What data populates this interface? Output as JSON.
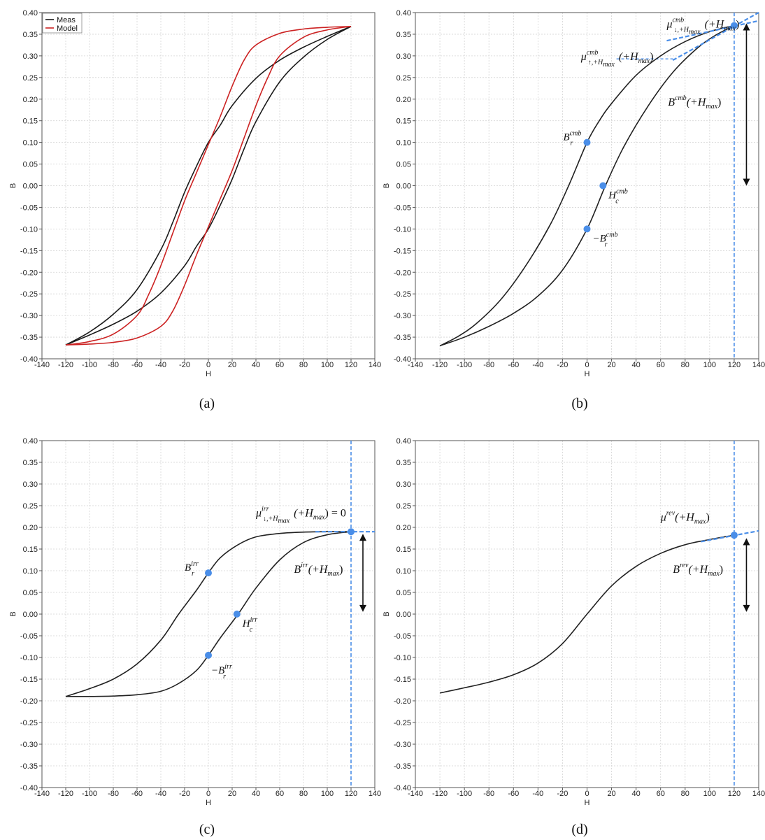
{
  "chart_data": [
    {
      "id": "a",
      "type": "line",
      "caption": "(a)",
      "xlabel": "H",
      "ylabel": "B",
      "xlim": [
        -140,
        140
      ],
      "ylim": [
        -0.4,
        0.4
      ],
      "x_ticks": [
        "-140",
        "-120",
        "-100",
        "-80",
        "-60",
        "-40",
        "-20",
        "0",
        "20",
        "40",
        "60",
        "80",
        "100",
        "120",
        "140"
      ],
      "y_ticks": [
        "-0.40",
        "-0.35",
        "-0.30",
        "-0.25",
        "-0.20",
        "-0.15",
        "-0.10",
        "-0.05",
        "0.00",
        "0.05",
        "0.10",
        "0.15",
        "0.20",
        "0.25",
        "0.30",
        "0.35",
        "0.40"
      ],
      "grid": true,
      "legend": {
        "placement": "top-left",
        "entries": [
          "Meas",
          "Model"
        ]
      },
      "series": [
        {
          "name": "Meas",
          "color": "#1a1a1a",
          "branches": [
            [
              [
                -120,
                -0.368
              ],
              [
                -100,
                -0.345
              ],
              [
                -80,
                -0.32
              ],
              [
                -60,
                -0.29
              ],
              [
                -40,
                -0.248
              ],
              [
                -20,
                -0.185
              ],
              [
                -10,
                -0.14
              ],
              [
                0,
                -0.1
              ],
              [
                10,
                -0.045
              ],
              [
                20,
                0.015
              ],
              [
                30,
                0.085
              ],
              [
                40,
                0.148
              ],
              [
                60,
                0.24
              ],
              [
                80,
                0.297
              ],
              [
                100,
                0.338
              ],
              [
                120,
                0.368
              ]
            ],
            [
              [
                120,
                0.368
              ],
              [
                100,
                0.345
              ],
              [
                80,
                0.32
              ],
              [
                60,
                0.29
              ],
              [
                40,
                0.248
              ],
              [
                20,
                0.185
              ],
              [
                10,
                0.14
              ],
              [
                0,
                0.1
              ],
              [
                -10,
                0.045
              ],
              [
                -20,
                -0.015
              ],
              [
                -30,
                -0.085
              ],
              [
                -40,
                -0.148
              ],
              [
                -60,
                -0.24
              ],
              [
                -80,
                -0.297
              ],
              [
                -100,
                -0.338
              ],
              [
                -120,
                -0.368
              ]
            ]
          ]
        },
        {
          "name": "Model",
          "color": "#cc2222",
          "branches": [
            [
              [
                -120,
                -0.368
              ],
              [
                -100,
                -0.366
              ],
              [
                -80,
                -0.362
              ],
              [
                -60,
                -0.352
              ],
              [
                -40,
                -0.325
              ],
              [
                -30,
                -0.29
              ],
              [
                -20,
                -0.23
              ],
              [
                -10,
                -0.16
              ],
              [
                0,
                -0.095
              ],
              [
                10,
                -0.03
              ],
              [
                20,
                0.035
              ],
              [
                30,
                0.11
              ],
              [
                40,
                0.185
              ],
              [
                50,
                0.25
              ],
              [
                60,
                0.3
              ],
              [
                80,
                0.343
              ],
              [
                100,
                0.36
              ],
              [
                120,
                0.368
              ]
            ],
            [
              [
                120,
                0.368
              ],
              [
                100,
                0.366
              ],
              [
                80,
                0.362
              ],
              [
                60,
                0.352
              ],
              [
                40,
                0.325
              ],
              [
                30,
                0.29
              ],
              [
                20,
                0.23
              ],
              [
                10,
                0.16
              ],
              [
                0,
                0.095
              ],
              [
                -10,
                0.03
              ],
              [
                -20,
                -0.035
              ],
              [
                -30,
                -0.11
              ],
              [
                -40,
                -0.185
              ],
              [
                -50,
                -0.25
              ],
              [
                -60,
                -0.3
              ],
              [
                -80,
                -0.343
              ],
              [
                -100,
                -0.36
              ],
              [
                -120,
                -0.368
              ]
            ]
          ]
        }
      ],
      "points": [],
      "annotations": []
    },
    {
      "id": "b",
      "type": "line",
      "caption": "(b)",
      "xlabel": "H",
      "ylabel": "B",
      "xlim": [
        -140,
        140
      ],
      "ylim": [
        -0.4,
        0.4
      ],
      "x_ticks": [
        "-140",
        "-120",
        "-100",
        "-80",
        "-60",
        "-40",
        "-20",
        "0",
        "20",
        "40",
        "60",
        "80",
        "100",
        "120",
        "140"
      ],
      "y_ticks": [
        "-0.40",
        "-0.35",
        "-0.30",
        "-0.25",
        "-0.20",
        "-0.15",
        "-0.10",
        "-0.05",
        "0.00",
        "0.05",
        "0.10",
        "0.15",
        "0.20",
        "0.25",
        "0.30",
        "0.35",
        "0.40"
      ],
      "grid": true,
      "accent_color": "#4a8ee8",
      "series": [
        {
          "color": "#222222",
          "branches": [
            [
              [
                -120,
                -0.37
              ],
              [
                -100,
                -0.35
              ],
              [
                -80,
                -0.325
              ],
              [
                -60,
                -0.295
              ],
              [
                -40,
                -0.255
              ],
              [
                -20,
                -0.195
              ],
              [
                0,
                -0.1
              ],
              [
                15,
                0.0
              ],
              [
                30,
                0.09
              ],
              [
                50,
                0.185
              ],
              [
                70,
                0.262
              ],
              [
                90,
                0.318
              ],
              [
                105,
                0.348
              ],
              [
                120,
                0.37
              ]
            ],
            [
              [
                120,
                0.37
              ],
              [
                100,
                0.356
              ],
              [
                80,
                0.333
              ],
              [
                60,
                0.3
              ],
              [
                40,
                0.255
              ],
              [
                20,
                0.19
              ],
              [
                10,
                0.15
              ],
              [
                0,
                0.1
              ],
              [
                -15,
                0.0
              ],
              [
                -30,
                -0.09
              ],
              [
                -50,
                -0.185
              ],
              [
                -70,
                -0.262
              ],
              [
                -90,
                -0.318
              ],
              [
                -105,
                -0.348
              ],
              [
                -120,
                -0.37
              ]
            ]
          ]
        }
      ],
      "points": [
        {
          "x": 0,
          "y": 0.1,
          "label": {
            "base": "B",
            "sub": "r",
            "sup": "cmb",
            "side": "left"
          }
        },
        {
          "x": 13,
          "y": 0.0,
          "label": {
            "base": "H",
            "sub": "c",
            "sup": "cmb",
            "side": "right-below"
          }
        },
        {
          "x": 0,
          "y": -0.1,
          "label": {
            "base": "−B",
            "sub": "r",
            "sup": "cmb",
            "side": "right-below"
          }
        },
        {
          "x": 120,
          "y": 0.37,
          "label": null
        }
      ],
      "vline_x": 120,
      "tangents": [
        {
          "from": [
            65,
            0.335
          ],
          "to": [
            140,
            0.381
          ]
        },
        {
          "from": [
            70,
            0.29
          ],
          "to": [
            140,
            0.4
          ]
        }
      ],
      "hguide": {
        "x1": 24,
        "x2": 72,
        "y": 0.293
      },
      "arrow": {
        "x": 130,
        "y1": 0.375,
        "y2": 0.0
      },
      "annotations": [
        {
          "kind": "mu",
          "sup": "cmb",
          "arrow_sym": "↓",
          "tail": "(+H",
          "sub": "max",
          "close": ")",
          "x": 65,
          "y": 0.365
        },
        {
          "kind": "mu",
          "sup": "cmb",
          "arrow_sym": "↑",
          "tail": "(+H",
          "sub": "max",
          "close": ")",
          "x": -5,
          "y": 0.29
        },
        {
          "kind": "big",
          "base": "B",
          "sup": "cmb",
          "tail": "(+H",
          "sub": "max",
          "close": ")",
          "x": 66,
          "y": 0.185
        }
      ]
    },
    {
      "id": "c",
      "type": "line",
      "caption": "(c)",
      "xlabel": "H",
      "ylabel": "B",
      "xlim": [
        -140,
        140
      ],
      "ylim": [
        -0.4,
        0.4
      ],
      "x_ticks": [
        "-140",
        "-120",
        "-100",
        "-80",
        "-60",
        "-40",
        "-20",
        "0",
        "20",
        "40",
        "60",
        "80",
        "100",
        "120",
        "140"
      ],
      "y_ticks": [
        "-0.40",
        "-0.35",
        "-0.30",
        "-0.25",
        "-0.20",
        "-0.15",
        "-0.10",
        "-0.05",
        "0.00",
        "0.05",
        "0.10",
        "0.15",
        "0.20",
        "0.25",
        "0.30",
        "0.35",
        "0.40"
      ],
      "grid": true,
      "accent_color": "#4a8ee8",
      "series": [
        {
          "color": "#222222",
          "branches": [
            [
              [
                -120,
                -0.19
              ],
              [
                -100,
                -0.19
              ],
              [
                -80,
                -0.189
              ],
              [
                -60,
                -0.186
              ],
              [
                -40,
                -0.178
              ],
              [
                -25,
                -0.16
              ],
              [
                -10,
                -0.13
              ],
              [
                0,
                -0.095
              ],
              [
                10,
                -0.055
              ],
              [
                25,
                0.0
              ],
              [
                40,
                0.06
              ],
              [
                60,
                0.125
              ],
              [
                80,
                0.165
              ],
              [
                100,
                0.183
              ],
              [
                120,
                0.19
              ]
            ],
            [
              [
                120,
                0.19
              ],
              [
                100,
                0.19
              ],
              [
                80,
                0.189
              ],
              [
                60,
                0.186
              ],
              [
                40,
                0.178
              ],
              [
                25,
                0.16
              ],
              [
                10,
                0.13
              ],
              [
                0,
                0.095
              ],
              [
                -10,
                0.055
              ],
              [
                -25,
                0.0
              ],
              [
                -40,
                -0.06
              ],
              [
                -60,
                -0.115
              ],
              [
                -80,
                -0.15
              ],
              [
                -100,
                -0.172
              ],
              [
                -120,
                -0.19
              ]
            ]
          ]
        }
      ],
      "points": [
        {
          "x": 0,
          "y": 0.095,
          "label": {
            "base": "B",
            "sub": "r",
            "sup": "irr",
            "side": "left"
          }
        },
        {
          "x": 24,
          "y": 0.0,
          "label": {
            "base": "H",
            "sub": "c",
            "sup": "irr",
            "side": "right-below"
          }
        },
        {
          "x": 0,
          "y": -0.095,
          "label": {
            "base": "−B",
            "sub": "r",
            "sup": "irr",
            "side": "below"
          }
        },
        {
          "x": 120,
          "y": 0.19,
          "label": null
        }
      ],
      "vline_x": 120,
      "tangents": [
        {
          "from": [
            90,
            0.19
          ],
          "to": [
            140,
            0.19
          ]
        }
      ],
      "hguide": null,
      "arrow": {
        "x": 130,
        "y1": 0.185,
        "y2": 0.005
      },
      "annotations": [
        {
          "kind": "mu",
          "sup": "irr",
          "arrow_sym": "↓",
          "tail": "(+H",
          "sub": "max",
          "close": ") = 0",
          "x": 40,
          "y": 0.225
        },
        {
          "kind": "big",
          "base": "B",
          "sup": "irr",
          "tail": "(+H",
          "sub": "max",
          "close": ")",
          "x": 72,
          "y": 0.095
        }
      ]
    },
    {
      "id": "d",
      "type": "line",
      "caption": "(d)",
      "xlabel": "H",
      "ylabel": "B",
      "xlim": [
        -140,
        140
      ],
      "ylim": [
        -0.4,
        0.4
      ],
      "x_ticks": [
        "-140",
        "-120",
        "-100",
        "-80",
        "-60",
        "-40",
        "-20",
        "0",
        "20",
        "40",
        "60",
        "80",
        "100",
        "120",
        "140"
      ],
      "y_ticks": [
        "-0.40",
        "-0.35",
        "-0.30",
        "-0.25",
        "-0.20",
        "-0.15",
        "-0.10",
        "-0.05",
        "0.00",
        "0.05",
        "0.10",
        "0.15",
        "0.20",
        "0.25",
        "0.30",
        "0.35",
        "0.40"
      ],
      "grid": true,
      "accent_color": "#4a8ee8",
      "series": [
        {
          "color": "#222222",
          "branches": [
            [
              [
                -120,
                -0.182
              ],
              [
                -100,
                -0.17
              ],
              [
                -80,
                -0.157
              ],
              [
                -60,
                -0.14
              ],
              [
                -40,
                -0.113
              ],
              [
                -20,
                -0.068
              ],
              [
                0,
                0.0
              ],
              [
                20,
                0.065
              ],
              [
                40,
                0.11
              ],
              [
                60,
                0.14
              ],
              [
                80,
                0.16
              ],
              [
                100,
                0.172
              ],
              [
                120,
                0.182
              ]
            ]
          ]
        }
      ],
      "points": [
        {
          "x": 120,
          "y": 0.182,
          "label": null
        }
      ],
      "vline_x": 120,
      "tangents": [
        {
          "from": [
            93,
            0.167
          ],
          "to": [
            140,
            0.192
          ]
        }
      ],
      "hguide": null,
      "arrow": {
        "x": 130,
        "y1": 0.175,
        "y2": 0.005
      },
      "annotations": [
        {
          "kind": "big",
          "base": "μ",
          "sup": "rev",
          "tail": "(+H",
          "sub": "max",
          "close": ")",
          "x": 60,
          "y": 0.215
        },
        {
          "kind": "big",
          "base": "B",
          "sup": "rev",
          "tail": "(+H",
          "sub": "max",
          "close": ")",
          "x": 70,
          "y": 0.095
        }
      ]
    }
  ]
}
